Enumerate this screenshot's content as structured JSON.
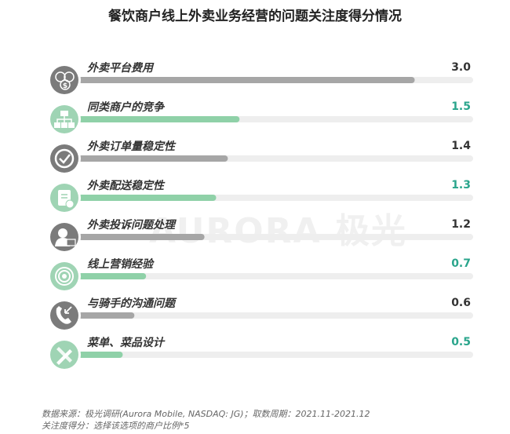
{
  "chart_data": {
    "type": "bar",
    "title": "餐饮商户线上外卖业务经营的问题关注度得分情况",
    "categories": [
      "外卖平台费用",
      "同类商户的竞争",
      "外卖订单量稳定性",
      "外卖配送稳定性",
      "外卖投诉问题处理",
      "线上营销经验",
      "与骑手的沟通问题",
      "菜单、菜品设计"
    ],
    "values": [
      3.0,
      1.5,
      1.4,
      1.3,
      1.2,
      0.7,
      0.6,
      0.5
    ],
    "value_labels": [
      "3.0",
      "1.5",
      "1.4",
      "1.3",
      "1.2",
      "0.7",
      "0.6",
      "0.5"
    ],
    "icons": [
      "money-coins-icon",
      "org-chart-icon",
      "check-circle-icon",
      "clipboard-check-icon",
      "user-mail-icon",
      "signal-broadcast-icon",
      "phone-call-icon",
      "pencil-ruler-icon"
    ],
    "bar_colors": [
      "gray",
      "green",
      "gray",
      "green",
      "gray",
      "green",
      "gray",
      "green"
    ],
    "xlim": [
      0,
      3.5
    ],
    "colors": {
      "gray_bar": "#a6a6a6",
      "green_bar": "#8fd1a8",
      "track": "#eeeeee",
      "gray_icon": "#7b7b7b",
      "green_icon": "#9fd4b4",
      "green_value": "#2aa58c",
      "gray_value": "#333333"
    }
  },
  "watermark": "AURORA 极光",
  "footer": {
    "line1": "数据来源：极光调研(Aurora Mobile, NASDAQ: JG)；取数周期：2021.11-2021.12",
    "line2": "关注度得分：选择该选项的商户比例*5"
  }
}
